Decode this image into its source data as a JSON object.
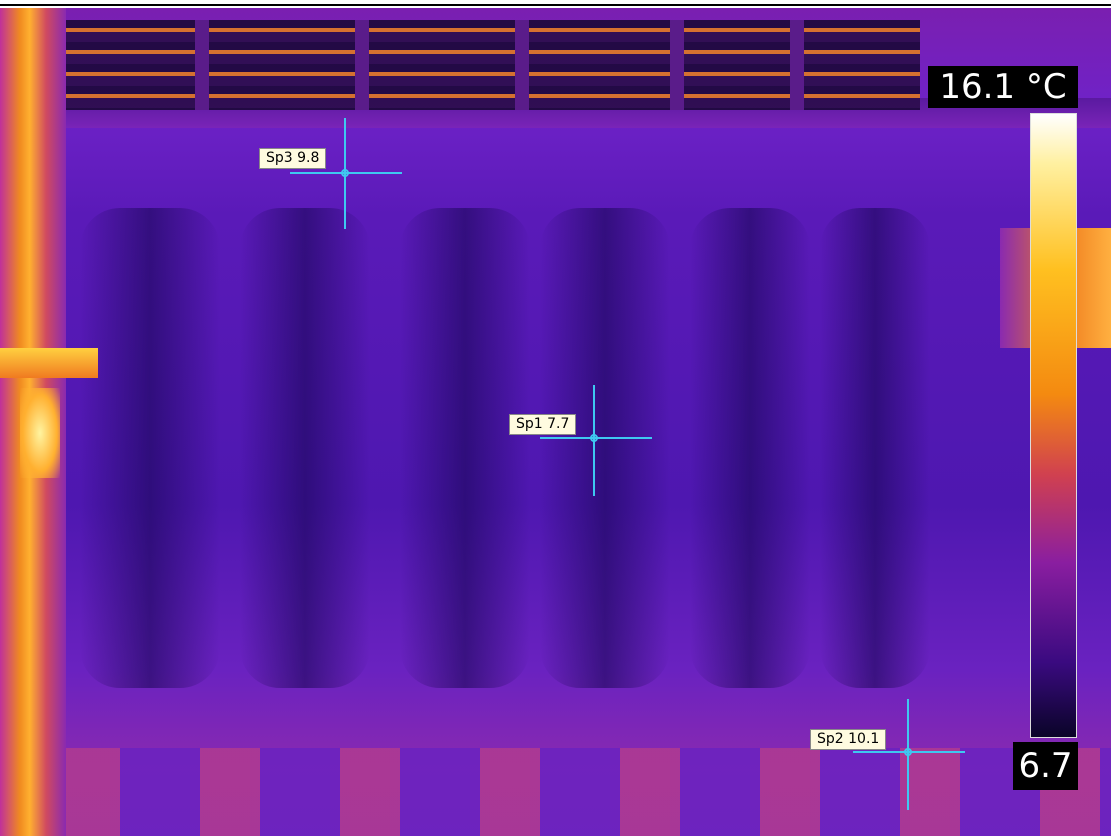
{
  "scale": {
    "max_label": "16.1 °C",
    "min_label": "6.7"
  },
  "spots": [
    {
      "label": "Sp3 9.8"
    },
    {
      "label": "Sp1 7.7"
    },
    {
      "label": "Sp2 10.1"
    }
  ]
}
